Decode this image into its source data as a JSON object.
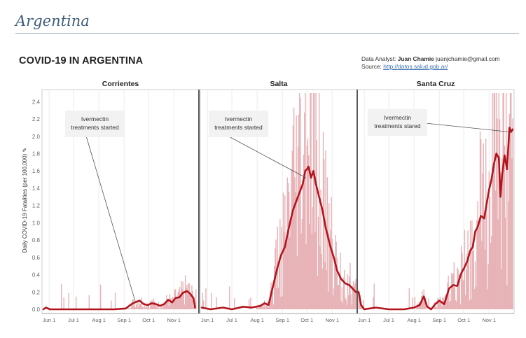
{
  "page": {
    "heading": "Argentina"
  },
  "chart_header": {
    "title": "COVID-19 IN ARGENTINA",
    "analyst_label": "Data Analyst:",
    "analyst_name": "Juan Chamie",
    "analyst_email": "juanjchamie@gmail.com",
    "source_label": "Source:",
    "source_url": "http://datos.salud.gob.ar/"
  },
  "chart_data": {
    "type": "line",
    "ylabel": "Daily COVID-19 Fatalities (per 100,000) ✎",
    "ylim": [
      0,
      2.5
    ],
    "yticks": [
      0.0,
      0.2,
      0.4,
      0.6,
      0.8,
      1.0,
      1.2,
      1.4,
      1.6,
      1.8,
      2.0,
      2.2,
      2.4
    ],
    "xlim": [
      "2020-05-25",
      "2020-11-30"
    ],
    "xticks": [
      {
        "date": "2020-06-01",
        "label": "Jun 1"
      },
      {
        "date": "2020-07-01",
        "label": "Jul 1"
      },
      {
        "date": "2020-08-01",
        "label": "Aug 1"
      },
      {
        "date": "2020-09-01",
        "label": "Sep 1"
      },
      {
        "date": "2020-10-01",
        "label": "Oct 1"
      },
      {
        "date": "2020-11-01",
        "label": "Nov 1"
      }
    ],
    "colors": {
      "line": "#b3141c",
      "bars": "#e7b3b7",
      "annotation_box": "#f2f2f2"
    },
    "panels": [
      {
        "name": "Corrientes",
        "annotation": {
          "lines": [
            "Ivermectin",
            "treatments started"
          ],
          "date": "2020-09-15",
          "value": 0.08
        },
        "line": [
          [
            "2020-05-25",
            0.0
          ],
          [
            "2020-05-28",
            0.02
          ],
          [
            "2020-06-02",
            0.0
          ],
          [
            "2020-06-20",
            0.0
          ],
          [
            "2020-07-10",
            0.0
          ],
          [
            "2020-08-01",
            0.0
          ],
          [
            "2020-08-20",
            0.0
          ],
          [
            "2020-09-03",
            0.01
          ],
          [
            "2020-09-10",
            0.06
          ],
          [
            "2020-09-14",
            0.08
          ],
          [
            "2020-09-20",
            0.1
          ],
          [
            "2020-09-25",
            0.06
          ],
          [
            "2020-09-30",
            0.05
          ],
          [
            "2020-10-05",
            0.07
          ],
          [
            "2020-10-10",
            0.06
          ],
          [
            "2020-10-15",
            0.04
          ],
          [
            "2020-10-20",
            0.06
          ],
          [
            "2020-10-25",
            0.11
          ],
          [
            "2020-10-30",
            0.08
          ],
          [
            "2020-11-03",
            0.13
          ],
          [
            "2020-11-08",
            0.14
          ],
          [
            "2020-11-12",
            0.19
          ],
          [
            "2020-11-17",
            0.21
          ],
          [
            "2020-11-21",
            0.18
          ],
          [
            "2020-11-25",
            0.13
          ],
          [
            "2020-11-27",
            0.02
          ]
        ]
      },
      {
        "name": "Salta",
        "annotation": {
          "lines": [
            "Ivermectin",
            "treatments started"
          ],
          "date": "2020-09-30",
          "value": 1.52
        },
        "line": [
          [
            "2020-05-25",
            0.02
          ],
          [
            "2020-06-05",
            0.0
          ],
          [
            "2020-06-20",
            0.02
          ],
          [
            "2020-07-01",
            0.0
          ],
          [
            "2020-07-15",
            0.03
          ],
          [
            "2020-07-25",
            0.02
          ],
          [
            "2020-08-05",
            0.04
          ],
          [
            "2020-08-10",
            0.07
          ],
          [
            "2020-08-15",
            0.05
          ],
          [
            "2020-08-20",
            0.25
          ],
          [
            "2020-08-25",
            0.45
          ],
          [
            "2020-08-30",
            0.62
          ],
          [
            "2020-09-04",
            0.72
          ],
          [
            "2020-09-09",
            0.95
          ],
          [
            "2020-09-14",
            1.15
          ],
          [
            "2020-09-18",
            1.25
          ],
          [
            "2020-09-22",
            1.35
          ],
          [
            "2020-09-26",
            1.45
          ],
          [
            "2020-09-29",
            1.6
          ],
          [
            "2020-10-01",
            1.62
          ],
          [
            "2020-10-03",
            1.65
          ],
          [
            "2020-10-06",
            1.52
          ],
          [
            "2020-10-09",
            1.6
          ],
          [
            "2020-10-12",
            1.45
          ],
          [
            "2020-10-16",
            1.3
          ],
          [
            "2020-10-20",
            1.15
          ],
          [
            "2020-10-24",
            0.95
          ],
          [
            "2020-10-29",
            0.75
          ],
          [
            "2020-11-03",
            0.6
          ],
          [
            "2020-11-07",
            0.45
          ],
          [
            "2020-11-12",
            0.35
          ],
          [
            "2020-11-17",
            0.3
          ],
          [
            "2020-11-22",
            0.28
          ],
          [
            "2020-11-30",
            0.2
          ]
        ]
      },
      {
        "name": "Santa Cruz",
        "annotation": {
          "lines": [
            "Ivermectin",
            "treatments stared"
          ],
          "date": "2020-11-27",
          "value": 2.05
        },
        "line": [
          [
            "2020-05-25",
            0.2
          ],
          [
            "2020-05-28",
            0.05
          ],
          [
            "2020-06-01",
            0.0
          ],
          [
            "2020-06-15",
            0.02
          ],
          [
            "2020-07-01",
            0.0
          ],
          [
            "2020-07-20",
            0.0
          ],
          [
            "2020-08-01",
            0.02
          ],
          [
            "2020-08-08",
            0.05
          ],
          [
            "2020-08-13",
            0.15
          ],
          [
            "2020-08-17",
            0.03
          ],
          [
            "2020-08-22",
            0.0
          ],
          [
            "2020-08-27",
            0.06
          ],
          [
            "2020-09-01",
            0.1
          ],
          [
            "2020-09-07",
            0.06
          ],
          [
            "2020-09-13",
            0.24
          ],
          [
            "2020-09-18",
            0.28
          ],
          [
            "2020-09-23",
            0.27
          ],
          [
            "2020-09-28",
            0.42
          ],
          [
            "2020-10-01",
            0.47
          ],
          [
            "2020-10-05",
            0.55
          ],
          [
            "2020-10-09",
            0.68
          ],
          [
            "2020-10-12",
            0.72
          ],
          [
            "2020-10-15",
            0.9
          ],
          [
            "2020-10-18",
            0.95
          ],
          [
            "2020-10-22",
            1.08
          ],
          [
            "2020-10-26",
            1.05
          ],
          [
            "2020-10-29",
            1.22
          ],
          [
            "2020-11-01",
            1.38
          ],
          [
            "2020-11-04",
            1.5
          ],
          [
            "2020-11-07",
            1.68
          ],
          [
            "2020-11-10",
            1.8
          ],
          [
            "2020-11-13",
            1.75
          ],
          [
            "2020-11-15",
            1.3
          ],
          [
            "2020-11-17",
            1.55
          ],
          [
            "2020-11-20",
            1.78
          ],
          [
            "2020-11-23",
            1.62
          ],
          [
            "2020-11-26",
            2.1
          ],
          [
            "2020-11-28",
            2.05
          ],
          [
            "2020-11-30",
            2.08
          ]
        ]
      }
    ]
  }
}
